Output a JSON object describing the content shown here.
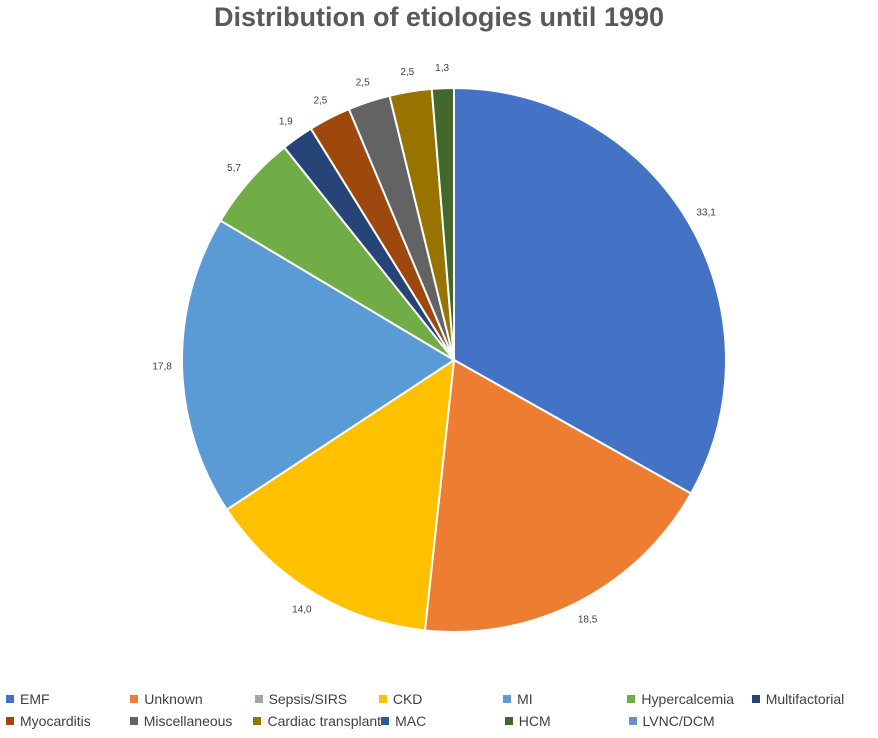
{
  "chart_data": {
    "type": "pie",
    "title": "Distribution of etiologies until 1990",
    "slices": [
      {
        "label": "EMF",
        "value": 33.1,
        "display": "33,1",
        "color": "#4472C4"
      },
      {
        "label": "Unknown",
        "value": 18.5,
        "display": "18,5",
        "color": "#ED7D31"
      },
      {
        "label": "CKD",
        "value": 14.0,
        "display": "14,0",
        "color": "#FFC000"
      },
      {
        "label": "MI",
        "value": 17.8,
        "display": "17,8",
        "color": "#5B9BD5"
      },
      {
        "label": "Hypercalcemia",
        "value": 5.7,
        "display": "5,7",
        "color": "#70AD47"
      },
      {
        "label": "Multifactorial",
        "value": 1.9,
        "display": "1,9",
        "color": "#264478"
      },
      {
        "label": "Myocarditis",
        "value": 2.5,
        "display": "2,5",
        "color": "#9E480E"
      },
      {
        "label": "Miscellaneous",
        "value": 2.5,
        "display": "2,5",
        "color": "#636363"
      },
      {
        "label": "Cardiac transplant",
        "value": 2.5,
        "display": "2,5",
        "color": "#997300"
      },
      {
        "label": "HCM",
        "value": 1.3,
        "display": "1,3",
        "color": "#43682B"
      }
    ],
    "legend": {
      "placement": "bottom",
      "rows": [
        [
          {
            "label": "EMF",
            "color": "#4472C4"
          },
          {
            "label": "Unknown",
            "color": "#ED7D31"
          },
          {
            "label": "Sepsis/SIRS",
            "color": "#A5A5A5"
          },
          {
            "label": "CKD",
            "color": "#FFC000"
          },
          {
            "label": "MI",
            "color": "#5B9BD5"
          },
          {
            "label": "Hypercalcemia",
            "color": "#70AD47"
          },
          {
            "label": "Multifactorial",
            "color": "#264478"
          }
        ],
        [
          {
            "label": "Myocarditis",
            "color": "#9E480E"
          },
          {
            "label": "Miscellaneous",
            "color": "#636363"
          },
          {
            "label": "Cardiac transplant",
            "color": "#997300"
          },
          {
            "label": "MAC",
            "color": "#255E91"
          },
          {
            "label": "HCM",
            "color": "#43682B"
          },
          {
            "label": "LVNC/DCM",
            "color": "#698ED0"
          }
        ]
      ]
    }
  }
}
